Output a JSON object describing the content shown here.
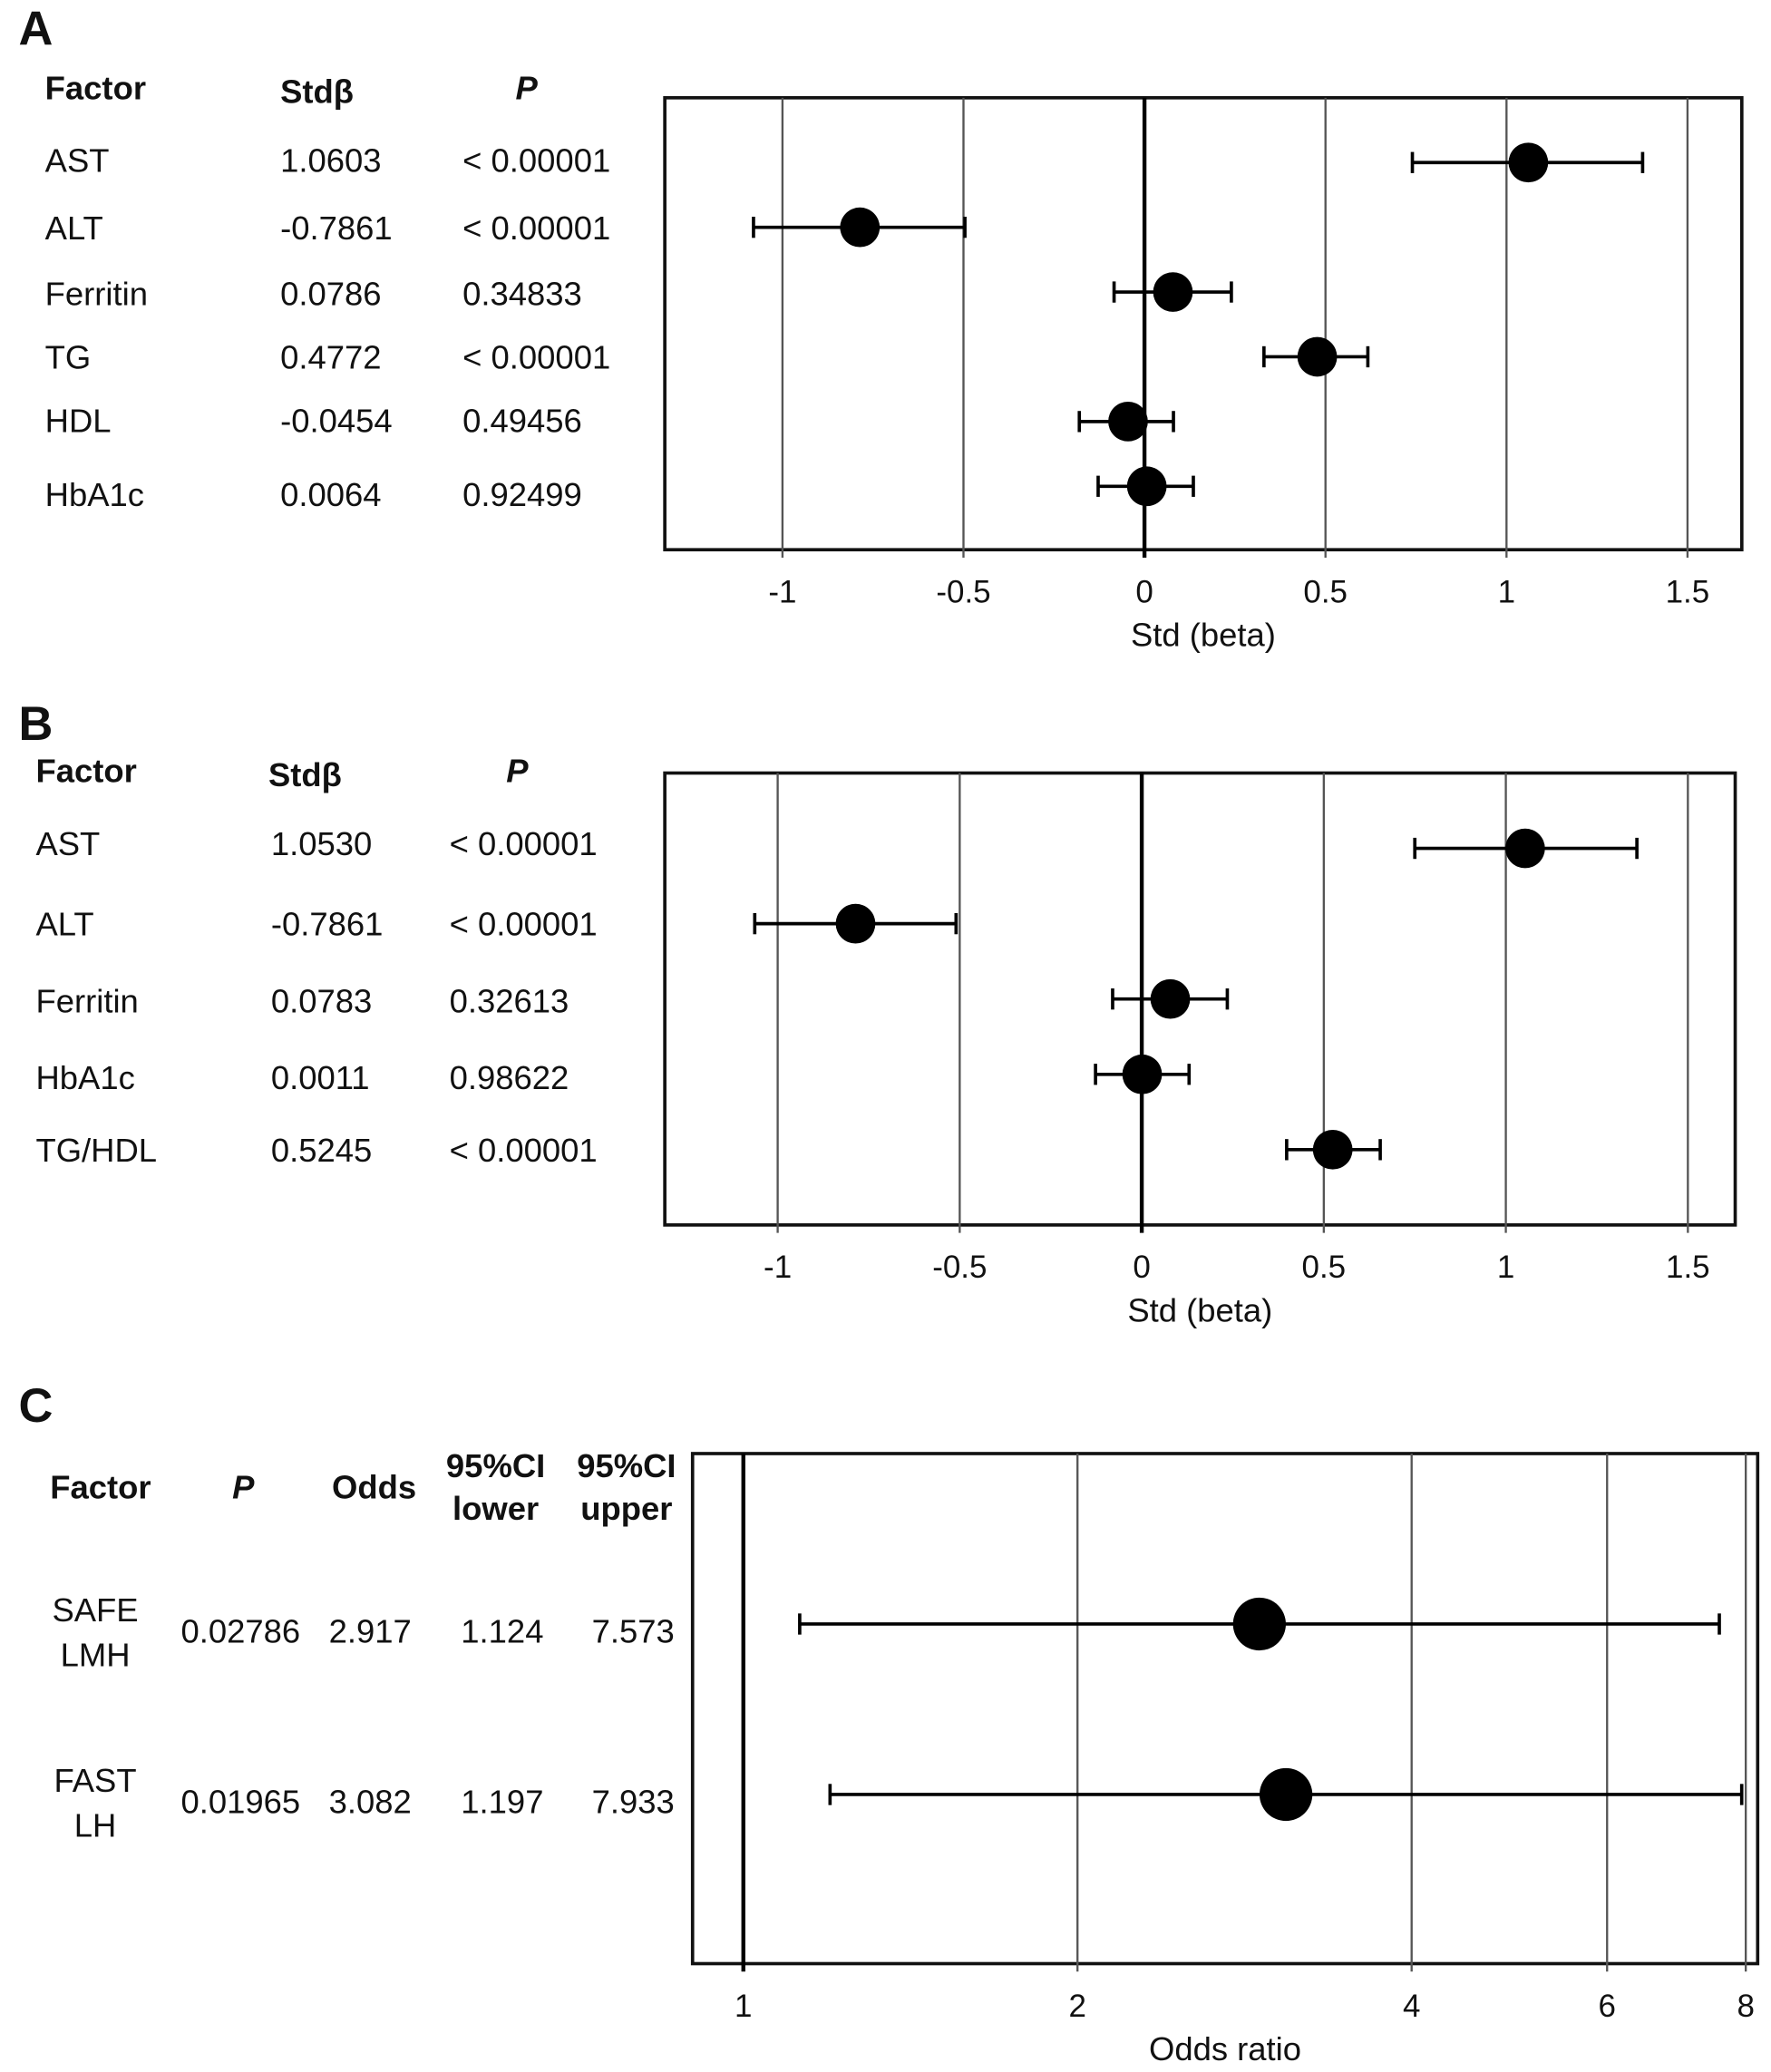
{
  "chart_data": [
    {
      "type": "forest",
      "panel": "A",
      "headers": [
        "Factor",
        "Stdβ",
        "P"
      ],
      "rows": [
        {
          "factor": "AST",
          "std_beta": "1.0603",
          "p": "< 0.00001",
          "est": 1.0603,
          "lo": 0.74,
          "hi": 1.376
        },
        {
          "factor": "ALT",
          "std_beta": "-0.7861",
          "p": "< 0.00001",
          "est": -0.7861,
          "lo": -1.08,
          "hi": -0.496
        },
        {
          "factor": "Ferritin",
          "std_beta": "0.0786",
          "p": "0.34833",
          "est": 0.0786,
          "lo": -0.084,
          "hi": 0.24
        },
        {
          "factor": "TG",
          "std_beta": "0.4772",
          "p": "< 0.00001",
          "est": 0.4772,
          "lo": 0.33,
          "hi": 0.617
        },
        {
          "factor": "HDL",
          "std_beta": "-0.0454",
          "p": "0.49456",
          "est": -0.0454,
          "lo": -0.18,
          "hi": 0.08
        },
        {
          "factor": "HbA1c",
          "std_beta": "0.0064",
          "p": "0.92499",
          "est": 0.0064,
          "lo": -0.128,
          "hi": 0.135
        }
      ],
      "xlabel": "Std (beta)",
      "xlim": [
        -1.325,
        1.65
      ],
      "xticks": [
        -1,
        -0.5,
        0,
        0.5,
        1,
        1.5
      ],
      "xtick_labels": [
        "-1",
        "-0.5",
        "0",
        "0.5",
        "1",
        "1.5"
      ],
      "reference": 0,
      "grid": true
    },
    {
      "type": "forest",
      "panel": "B",
      "headers": [
        "Factor",
        "Stdβ",
        "P"
      ],
      "rows": [
        {
          "factor": "AST",
          "std_beta": "1.0530",
          "p": "< 0.00001",
          "est": 1.053,
          "lo": 0.75,
          "hi": 1.36
        },
        {
          "factor": "ALT",
          "std_beta": "-0.7861",
          "p": "< 0.00001",
          "est": -0.7861,
          "lo": -1.063,
          "hi": -0.51
        },
        {
          "factor": "Ferritin",
          "std_beta": "0.0783",
          "p": "0.32613",
          "est": 0.0783,
          "lo": -0.08,
          "hi": 0.235
        },
        {
          "factor": "HbA1c",
          "std_beta": "0.0011",
          "p": "0.98622",
          "est": 0.0011,
          "lo": -0.127,
          "hi": 0.13
        },
        {
          "factor": "TG/HDL",
          "std_beta": "0.5245",
          "p": "< 0.00001",
          "est": 0.5245,
          "lo": 0.398,
          "hi": 0.655
        }
      ],
      "xlabel": "Std (beta)",
      "xlim": [
        -1.31,
        1.63
      ],
      "xticks": [
        -1,
        -0.5,
        0,
        0.5,
        1,
        1.5
      ],
      "xtick_labels": [
        "-1",
        "-0.5",
        "0",
        "0.5",
        "1",
        "1.5"
      ],
      "reference": 0,
      "grid": true
    },
    {
      "type": "forest",
      "panel": "C",
      "scale": "log",
      "headers": [
        "Factor",
        "P",
        "Odds",
        "95%CI lower",
        "95%CI upper"
      ],
      "header_lines": [
        [
          "Factor"
        ],
        [
          "P"
        ],
        [
          "Odds"
        ],
        [
          "95%CI",
          "lower"
        ],
        [
          "95%CI",
          "upper"
        ]
      ],
      "rows": [
        {
          "factor_lines": [
            "SAFE",
            "LMH"
          ],
          "p": "0.02786",
          "odds": "2.917",
          "lower": "1.124",
          "upper": "7.573",
          "est": 2.917,
          "lo": 1.124,
          "hi": 7.573
        },
        {
          "factor_lines": [
            "FAST",
            "LH"
          ],
          "p": "0.01965",
          "odds": "3.082",
          "lower": "1.197",
          "upper": "7.933",
          "est": 3.082,
          "lo": 1.197,
          "hi": 7.933
        }
      ],
      "xlabel": "Odds ratio",
      "xlim": [
        0.9,
        8.2
      ],
      "xticks": [
        1,
        2,
        4,
        6,
        8
      ],
      "xtick_labels": [
        "1",
        "2",
        "4",
        "6",
        "8"
      ],
      "reference": 1,
      "grid": true
    }
  ]
}
